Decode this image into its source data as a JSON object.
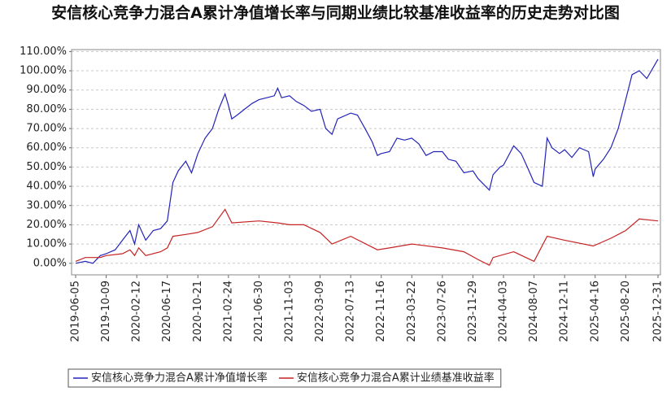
{
  "chart_data": {
    "type": "line",
    "title": "安信核心竞争力混合A累计净值增长率与同期业绩比较基准收益率的历史走势对比图",
    "xlim": [
      "2019-06-05",
      "2025-12-31"
    ],
    "xticks": [
      "2019-06-05",
      "2019-10-09",
      "2020-02-12",
      "2020-06-17",
      "2020-10-21",
      "2021-02-24",
      "2021-06-30",
      "2021-11-03",
      "2022-03-09",
      "2022-07-13",
      "2022-11-16",
      "2023-03-22",
      "2023-07-26",
      "2023-11-29",
      "2024-04-03",
      "2024-08-07",
      "2024-12-11",
      "2025-04-16",
      "2025-08-20",
      "2025-12-31"
    ],
    "ylim": [
      -6,
      111
    ],
    "yticks": [
      {
        "value": 0,
        "label": "0.00%"
      },
      {
        "value": 10,
        "label": "10.00%"
      },
      {
        "value": 20,
        "label": "20.00%"
      },
      {
        "value": 30,
        "label": "30.00%"
      },
      {
        "value": 40,
        "label": "40.00%"
      },
      {
        "value": 50,
        "label": "50.00%"
      },
      {
        "value": 60,
        "label": "60.00%"
      },
      {
        "value": 70,
        "label": "70.00%"
      },
      {
        "value": 80,
        "label": "80.00%"
      },
      {
        "value": 90,
        "label": "90.00%"
      },
      {
        "value": 100,
        "label": "100.00%"
      },
      {
        "value": 110,
        "label": "110.00%"
      }
    ],
    "grid": true,
    "legend": "bottom",
    "series": [
      {
        "name": "安信核心竞争力混合A累计净值增长率",
        "color": "#2323b8",
        "x": [
          "2019-06-05",
          "2019-07-15",
          "2019-08-15",
          "2019-09-15",
          "2019-10-09",
          "2019-11-15",
          "2019-12-15",
          "2020-01-15",
          "2020-02-03",
          "2020-02-20",
          "2020-03-20",
          "2020-04-20",
          "2020-05-20",
          "2020-06-17",
          "2020-07-10",
          "2020-08-01",
          "2020-09-01",
          "2020-09-25",
          "2020-10-21",
          "2020-11-20",
          "2020-12-20",
          "2021-01-15",
          "2021-02-10",
          "2021-02-24",
          "2021-03-10",
          "2021-04-01",
          "2021-05-01",
          "2021-06-01",
          "2021-06-30",
          "2021-08-01",
          "2021-09-01",
          "2021-09-15",
          "2021-10-01",
          "2021-11-03",
          "2021-12-01",
          "2022-01-01",
          "2022-02-01",
          "2022-03-09",
          "2022-04-01",
          "2022-04-27",
          "2022-05-20",
          "2022-07-13",
          "2022-08-10",
          "2022-09-10",
          "2022-10-10",
          "2022-10-31",
          "2022-11-16",
          "2022-12-20",
          "2023-01-20",
          "2023-02-20",
          "2023-03-22",
          "2023-04-20",
          "2023-05-20",
          "2023-06-20",
          "2023-07-26",
          "2023-08-20",
          "2023-09-20",
          "2023-10-23",
          "2023-11-29",
          "2023-12-20",
          "2024-01-20",
          "2024-02-05",
          "2024-02-20",
          "2024-03-20",
          "2024-04-03",
          "2024-05-15",
          "2024-06-15",
          "2024-07-10",
          "2024-08-07",
          "2024-09-10",
          "2024-09-30",
          "2024-10-20",
          "2024-11-20",
          "2024-12-11",
          "2025-01-10",
          "2025-02-10",
          "2025-03-20",
          "2025-04-08",
          "2025-04-16",
          "2025-05-20",
          "2025-06-20",
          "2025-07-20",
          "2025-08-20",
          "2025-09-15",
          "2025-10-15",
          "2025-11-15",
          "2025-12-31"
        ],
        "values": [
          0,
          1,
          0,
          4,
          5,
          7,
          12,
          17,
          10,
          20,
          12,
          17,
          18,
          22,
          42,
          48,
          53,
          47,
          57,
          65,
          70,
          80,
          88,
          82,
          75,
          77,
          80,
          83,
          85,
          86,
          87,
          91,
          86,
          87,
          84,
          82,
          79,
          80,
          70,
          67,
          75,
          78,
          77,
          70,
          63,
          56,
          57,
          58,
          65,
          64,
          65,
          62,
          56,
          58,
          58,
          54,
          53,
          47,
          48,
          44,
          40,
          38,
          46,
          50,
          51,
          61,
          57,
          50,
          42,
          40,
          65,
          60,
          57,
          59,
          55,
          60,
          58,
          45,
          49,
          54,
          60,
          70,
          85,
          98,
          100,
          96,
          106
        ]
      },
      {
        "name": "安信核心竞争力混合A累计业绩基准收益率",
        "color": "#c42323",
        "x": [
          "2019-06-05",
          "2019-07-15",
          "2019-09-15",
          "2019-10-09",
          "2019-12-15",
          "2020-01-15",
          "2020-02-03",
          "2020-02-20",
          "2020-03-20",
          "2020-05-20",
          "2020-06-17",
          "2020-07-10",
          "2020-09-01",
          "2020-10-21",
          "2020-12-20",
          "2021-02-10",
          "2021-03-10",
          "2021-06-30",
          "2021-09-15",
          "2021-11-03",
          "2022-01-01",
          "2022-03-09",
          "2022-04-27",
          "2022-07-13",
          "2022-10-31",
          "2022-12-20",
          "2023-03-22",
          "2023-07-26",
          "2023-10-23",
          "2023-12-20",
          "2024-02-05",
          "2024-02-20",
          "2024-05-15",
          "2024-08-07",
          "2024-09-30",
          "2024-12-11",
          "2025-04-08",
          "2025-06-20",
          "2025-08-20",
          "2025-10-15",
          "2025-12-31"
        ],
        "values": [
          1,
          3,
          3,
          4,
          5,
          7,
          4,
          8,
          4,
          6,
          8,
          14,
          15,
          16,
          19,
          28,
          21,
          22,
          21,
          20,
          20,
          16,
          10,
          14,
          7,
          8,
          10,
          8,
          6,
          2,
          -1,
          3,
          6,
          1,
          14,
          12,
          9,
          13,
          17,
          23,
          22
        ]
      }
    ]
  }
}
